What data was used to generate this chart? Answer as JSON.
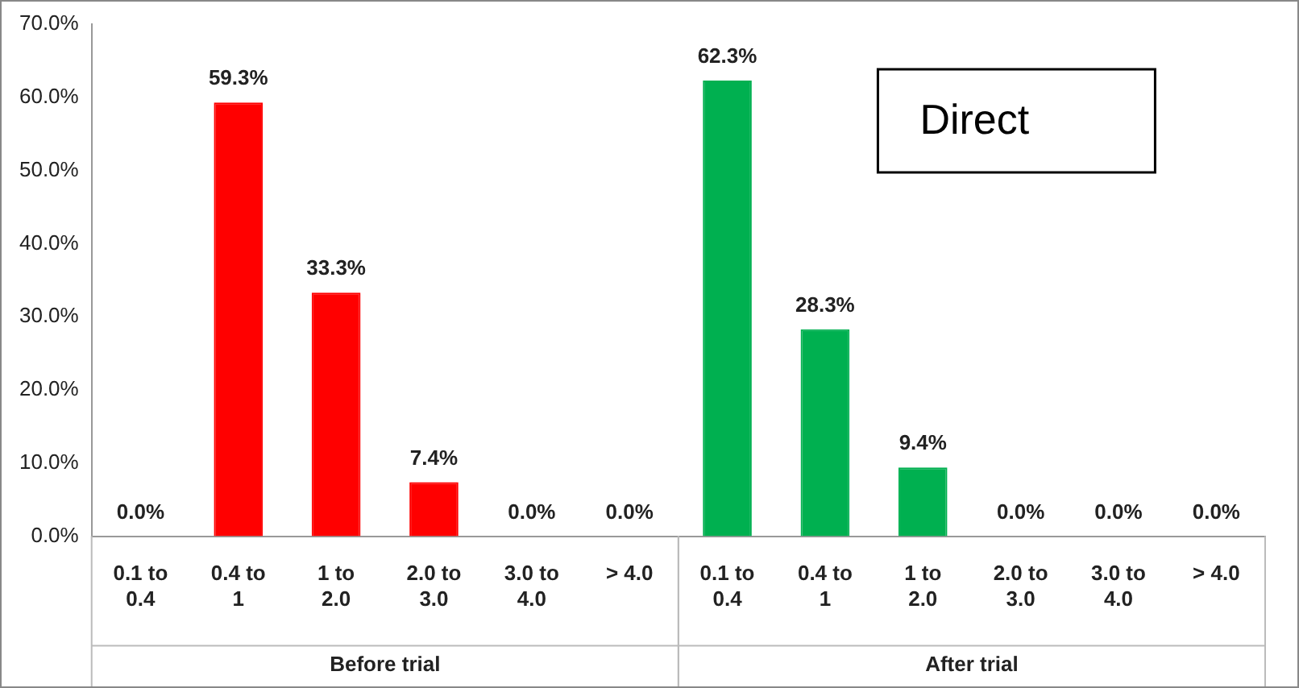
{
  "chart_data": {
    "type": "bar",
    "categories": [
      "0.1 to 0.4",
      "0.4 to 1",
      "1 to 2.0",
      "2.0 to 3.0",
      "3.0 to 4.0",
      "> 4.0",
      "0.1 to 0.4",
      "0.4 to 1",
      "1 to 2.0",
      "2.0 to 3.0",
      "3.0 to 4.0",
      "> 4.0"
    ],
    "values": [
      0,
      59.3,
      33.3,
      7.4,
      0,
      0,
      62.3,
      28.3,
      9.4,
      0,
      0,
      0
    ],
    "colors": [
      "#ff0000",
      "#ff0000",
      "#ff0000",
      "#ff0000",
      "#ff0000",
      "#ff0000",
      "#00b050",
      "#00b050",
      "#00b050",
      "#00b050",
      "#00b050",
      "#00b050"
    ],
    "value_labels": [
      "0.0%",
      "59.3%",
      "33.3%",
      "7.4%",
      "0.0%",
      "0.0%",
      "62.3%",
      "28.3%",
      "9.4%",
      "0.0%",
      "0.0%",
      "0.0%"
    ],
    "ylim": [
      0,
      70
    ],
    "yticks": [
      {
        "value": 0,
        "label": "0.0%"
      },
      {
        "value": 10,
        "label": "10.0%"
      },
      {
        "value": 20,
        "label": "20.0%"
      },
      {
        "value": 30,
        "label": "30.0%"
      },
      {
        "value": 40,
        "label": "40.0%"
      },
      {
        "value": 50,
        "label": "50.0%"
      },
      {
        "value": 60,
        "label": "60.0%"
      },
      {
        "value": 70,
        "label": "70.0%"
      }
    ],
    "grid": false,
    "legend": false,
    "annotations": [
      "Direct",
      "Before trial",
      "After trial"
    ]
  }
}
